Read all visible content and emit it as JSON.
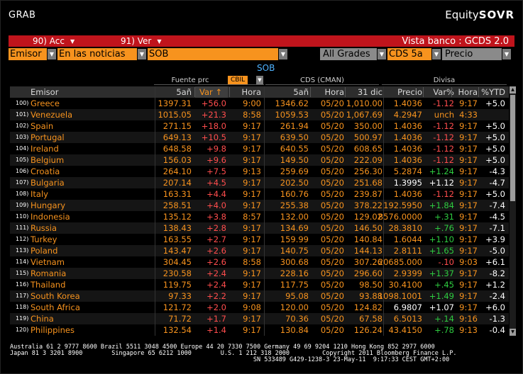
{
  "window": {
    "title": "GRAB",
    "brand_light": "Equity",
    "brand_bold": "SOVR"
  },
  "toolbar": {
    "acc_label": "90) Acc",
    "ver_label": "91) Ver",
    "vista_label": "Vista banco : GCDS 2.0"
  },
  "filters": {
    "emisor": "Emisor",
    "noticias": "En las noticias",
    "sob": "SOB",
    "grades": "All Grades",
    "cds": "CDS 5a",
    "precio": "Precio"
  },
  "section_label": "SOB",
  "group_headers": {
    "fuente": "Fuente prc",
    "cbil": "CBIL",
    "cds": "CDS (CMAN)",
    "divisa": "Divisa"
  },
  "columns": {
    "emisor": "Emisor",
    "a5": "5añ",
    "var": "Var ↑",
    "hora": "Hora",
    "a5b": "5añ",
    "hora_b": "Hora",
    "dic": "31 dic",
    "precio": "Precio",
    "varp": "Var%",
    "hora_c": "Hora",
    "ytd": "%YTD"
  },
  "rows": [
    {
      "n": "100)",
      "name": "Greece",
      "a5": "1397.31",
      "var": "+56.0",
      "hora": "9:00",
      "a5b": "1346.62",
      "fecha": "05/20",
      "dic": "1,010.00",
      "precio": "1.4036",
      "varp": "-1.12",
      "hora2": "9:17",
      "ytd": "+5.0",
      "pc": "orange",
      "vc": "red",
      "yc": "white"
    },
    {
      "n": "101)",
      "name": "Venezuela",
      "a5": "1015.05",
      "var": "+21.3",
      "hora": "8:58",
      "a5b": "1059.53",
      "fecha": "05/20",
      "dic": "1,067.69",
      "precio": "4.2947",
      "varp": "unch",
      "hora2": "4:33",
      "ytd": "",
      "pc": "orange",
      "vc": "orange",
      "yc": "white"
    },
    {
      "n": "102)",
      "name": "Spain",
      "a5": "271.15",
      "var": "+18.0",
      "hora": "9:17",
      "a5b": "261.94",
      "fecha": "05/20",
      "dic": "350.00",
      "precio": "1.4036",
      "varp": "-1.12",
      "hora2": "9:17",
      "ytd": "+5.0",
      "pc": "orange",
      "vc": "red",
      "yc": "white"
    },
    {
      "n": "103)",
      "name": "Portugal",
      "a5": "649.13",
      "var": "+10.5",
      "hora": "9:17",
      "a5b": "639.50",
      "fecha": "05/20",
      "dic": "500.97",
      "precio": "1.4036",
      "varp": "-1.12",
      "hora2": "9:17",
      "ytd": "+5.0",
      "pc": "orange",
      "vc": "red",
      "yc": "white"
    },
    {
      "n": "104)",
      "name": "Ireland",
      "a5": "648.58",
      "var": "+9.8",
      "hora": "9:17",
      "a5b": "640.55",
      "fecha": "05/20",
      "dic": "608.65",
      "precio": "1.4036",
      "varp": "-1.12",
      "hora2": "9:17",
      "ytd": "+5.0",
      "pc": "orange",
      "vc": "red",
      "yc": "white"
    },
    {
      "n": "105)",
      "name": "Belgium",
      "a5": "156.03",
      "var": "+9.6",
      "hora": "9:17",
      "a5b": "149.50",
      "fecha": "05/20",
      "dic": "222.09",
      "precio": "1.4036",
      "varp": "-1.12",
      "hora2": "9:17",
      "ytd": "+5.0",
      "pc": "orange",
      "vc": "red",
      "yc": "white"
    },
    {
      "n": "106)",
      "name": "Croatia",
      "a5": "264.10",
      "var": "+7.5",
      "hora": "9:13",
      "a5b": "259.69",
      "fecha": "05/20",
      "dic": "256.30",
      "precio": "5.2874",
      "varp": "+1.24",
      "hora2": "9:17",
      "ytd": "-4.3",
      "pc": "orange",
      "vc": "green",
      "yc": "white"
    },
    {
      "n": "107)",
      "name": "Bulgaria",
      "a5": "207.14",
      "var": "+4.5",
      "hora": "9:17",
      "a5b": "202.50",
      "fecha": "05/20",
      "dic": "251.68",
      "precio": "1.3995",
      "varp": "+1.12",
      "hora2": "9:17",
      "ytd": "-4.7",
      "pc": "white",
      "vc": "white",
      "yc": "white"
    },
    {
      "n": "108)",
      "name": "Italy",
      "a5": "163.31",
      "var": "+4.4",
      "hora": "9:17",
      "a5b": "160.76",
      "fecha": "05/20",
      "dic": "239.87",
      "precio": "1.4036",
      "varp": "-1.12",
      "hora2": "9:17",
      "ytd": "+5.0",
      "pc": "orange",
      "vc": "red",
      "yc": "white"
    },
    {
      "n": "109)",
      "name": "Hungary",
      "a5": "258.51",
      "var": "+4.0",
      "hora": "9:17",
      "a5b": "255.38",
      "fecha": "05/20",
      "dic": "378.22",
      "precio": "192.5950",
      "varp": "+1.84",
      "hora2": "9:17",
      "ytd": "-7.4",
      "pc": "orange",
      "vc": "green",
      "yc": "white"
    },
    {
      "n": "110)",
      "name": "Indonesia",
      "a5": "135.12",
      "var": "+3.8",
      "hora": "8:57",
      "a5b": "132.00",
      "fecha": "05/20",
      "dic": "129.02",
      "precio": "8576.0000",
      "varp": "+.31",
      "hora2": "9:17",
      "ytd": "-4.5",
      "pc": "orange",
      "vc": "green",
      "yc": "white"
    },
    {
      "n": "111)",
      "name": "Russia",
      "a5": "138.43",
      "var": "+2.8",
      "hora": "9:17",
      "a5b": "134.69",
      "fecha": "05/20",
      "dic": "146.50",
      "precio": "28.3810",
      "varp": "+.76",
      "hora2": "9:17",
      "ytd": "-7.1",
      "pc": "orange",
      "vc": "green",
      "yc": "white"
    },
    {
      "n": "112)",
      "name": "Turkey",
      "a5": "163.55",
      "var": "+2.7",
      "hora": "9:17",
      "a5b": "159.99",
      "fecha": "05/20",
      "dic": "140.84",
      "precio": "1.6044",
      "varp": "+1.10",
      "hora2": "9:17",
      "ytd": "+3.9",
      "pc": "orange",
      "vc": "green",
      "yc": "white"
    },
    {
      "n": "113)",
      "name": "Poland",
      "a5": "143.47",
      "var": "+2.6",
      "hora": "9:17",
      "a5b": "140.75",
      "fecha": "05/20",
      "dic": "144.13",
      "precio": "2.8111",
      "varp": "+1.65",
      "hora2": "9:17",
      "ytd": "-5.0",
      "pc": "orange",
      "vc": "green",
      "yc": "white"
    },
    {
      "n": "114)",
      "name": "Vietnam",
      "a5": "304.45",
      "var": "+2.6",
      "hora": "8:58",
      "a5b": "300.68",
      "fecha": "05/20",
      "dic": "307.26",
      "precio": "20685.000",
      "varp": "-.10",
      "hora2": "9:03",
      "ytd": "+6.1",
      "pc": "orange",
      "vc": "red",
      "yc": "white"
    },
    {
      "n": "115)",
      "name": "Romania",
      "a5": "230.58",
      "var": "+2.4",
      "hora": "9:17",
      "a5b": "228.16",
      "fecha": "05/20",
      "dic": "296.60",
      "precio": "2.9399",
      "varp": "+1.37",
      "hora2": "9:17",
      "ytd": "-8.2",
      "pc": "orange",
      "vc": "green",
      "yc": "white"
    },
    {
      "n": "116)",
      "name": "Thailand",
      "a5": "119.75",
      "var": "+2.4",
      "hora": "9:17",
      "a5b": "117.75",
      "fecha": "05/20",
      "dic": "98.50",
      "precio": "30.4100",
      "varp": "+.45",
      "hora2": "9:17",
      "ytd": "+1.2",
      "pc": "orange",
      "vc": "green",
      "yc": "white"
    },
    {
      "n": "117)",
      "name": "South Korea",
      "a5": "97.33",
      "var": "+2.2",
      "hora": "9:17",
      "a5b": "95.08",
      "fecha": "05/20",
      "dic": "93.88",
      "precio": "1098.1001",
      "varp": "+1.49",
      "hora2": "9:17",
      "ytd": "-2.4",
      "pc": "orange",
      "vc": "green",
      "yc": "white"
    },
    {
      "n": "118)",
      "name": "South Africa",
      "a5": "121.72",
      "var": "+2.0",
      "hora": "9:08",
      "a5b": "120.00",
      "fecha": "05/20",
      "dic": "124.82",
      "precio": "6.9807",
      "varp": "+1.07",
      "hora2": "9:17",
      "ytd": "+6.0",
      "pc": "white",
      "vc": "white",
      "yc": "white"
    },
    {
      "n": "119)",
      "name": "China",
      "a5": "71.72",
      "var": "+1.7",
      "hora": "9:17",
      "a5b": "70.36",
      "fecha": "05/20",
      "dic": "67.58",
      "precio": "6.5013",
      "varp": "+.14",
      "hora2": "9:16",
      "ytd": "-1.3",
      "pc": "orange",
      "vc": "green",
      "yc": "white"
    },
    {
      "n": "120)",
      "name": "Philippines",
      "a5": "132.54",
      "var": "+1.4",
      "hora": "9:17",
      "a5b": "130.84",
      "fecha": "05/20",
      "dic": "126.24",
      "precio": "43.4150",
      "varp": "+.78",
      "hora2": "9:13",
      "ytd": "-0.4",
      "pc": "orange",
      "vc": "green",
      "yc": "white"
    }
  ],
  "footer": {
    "line1": "Australia 61 2 9777 8600 Brazil 5511 3048 4500 Europe 44 20 7330 7500 Germany 49 69 9204 1210 Hong Kong 852 2977 6000",
    "line2": "Japan 81 3 3201 8900        Singapore 65 6212 1000        U.S. 1 212 318 2000         Copyright 2011 Bloomberg Finance L.P.",
    "line3": "                                                                   SN 533489 G429-1238-3 23-May-11  9:17:33 CEST GMT+2:00"
  },
  "colors": {
    "orange": "#f7931e",
    "red_bar": "#c0141c",
    "blue_label": "#4fb3ff",
    "green": "#2ecc40",
    "red": "#ff4d4d"
  }
}
